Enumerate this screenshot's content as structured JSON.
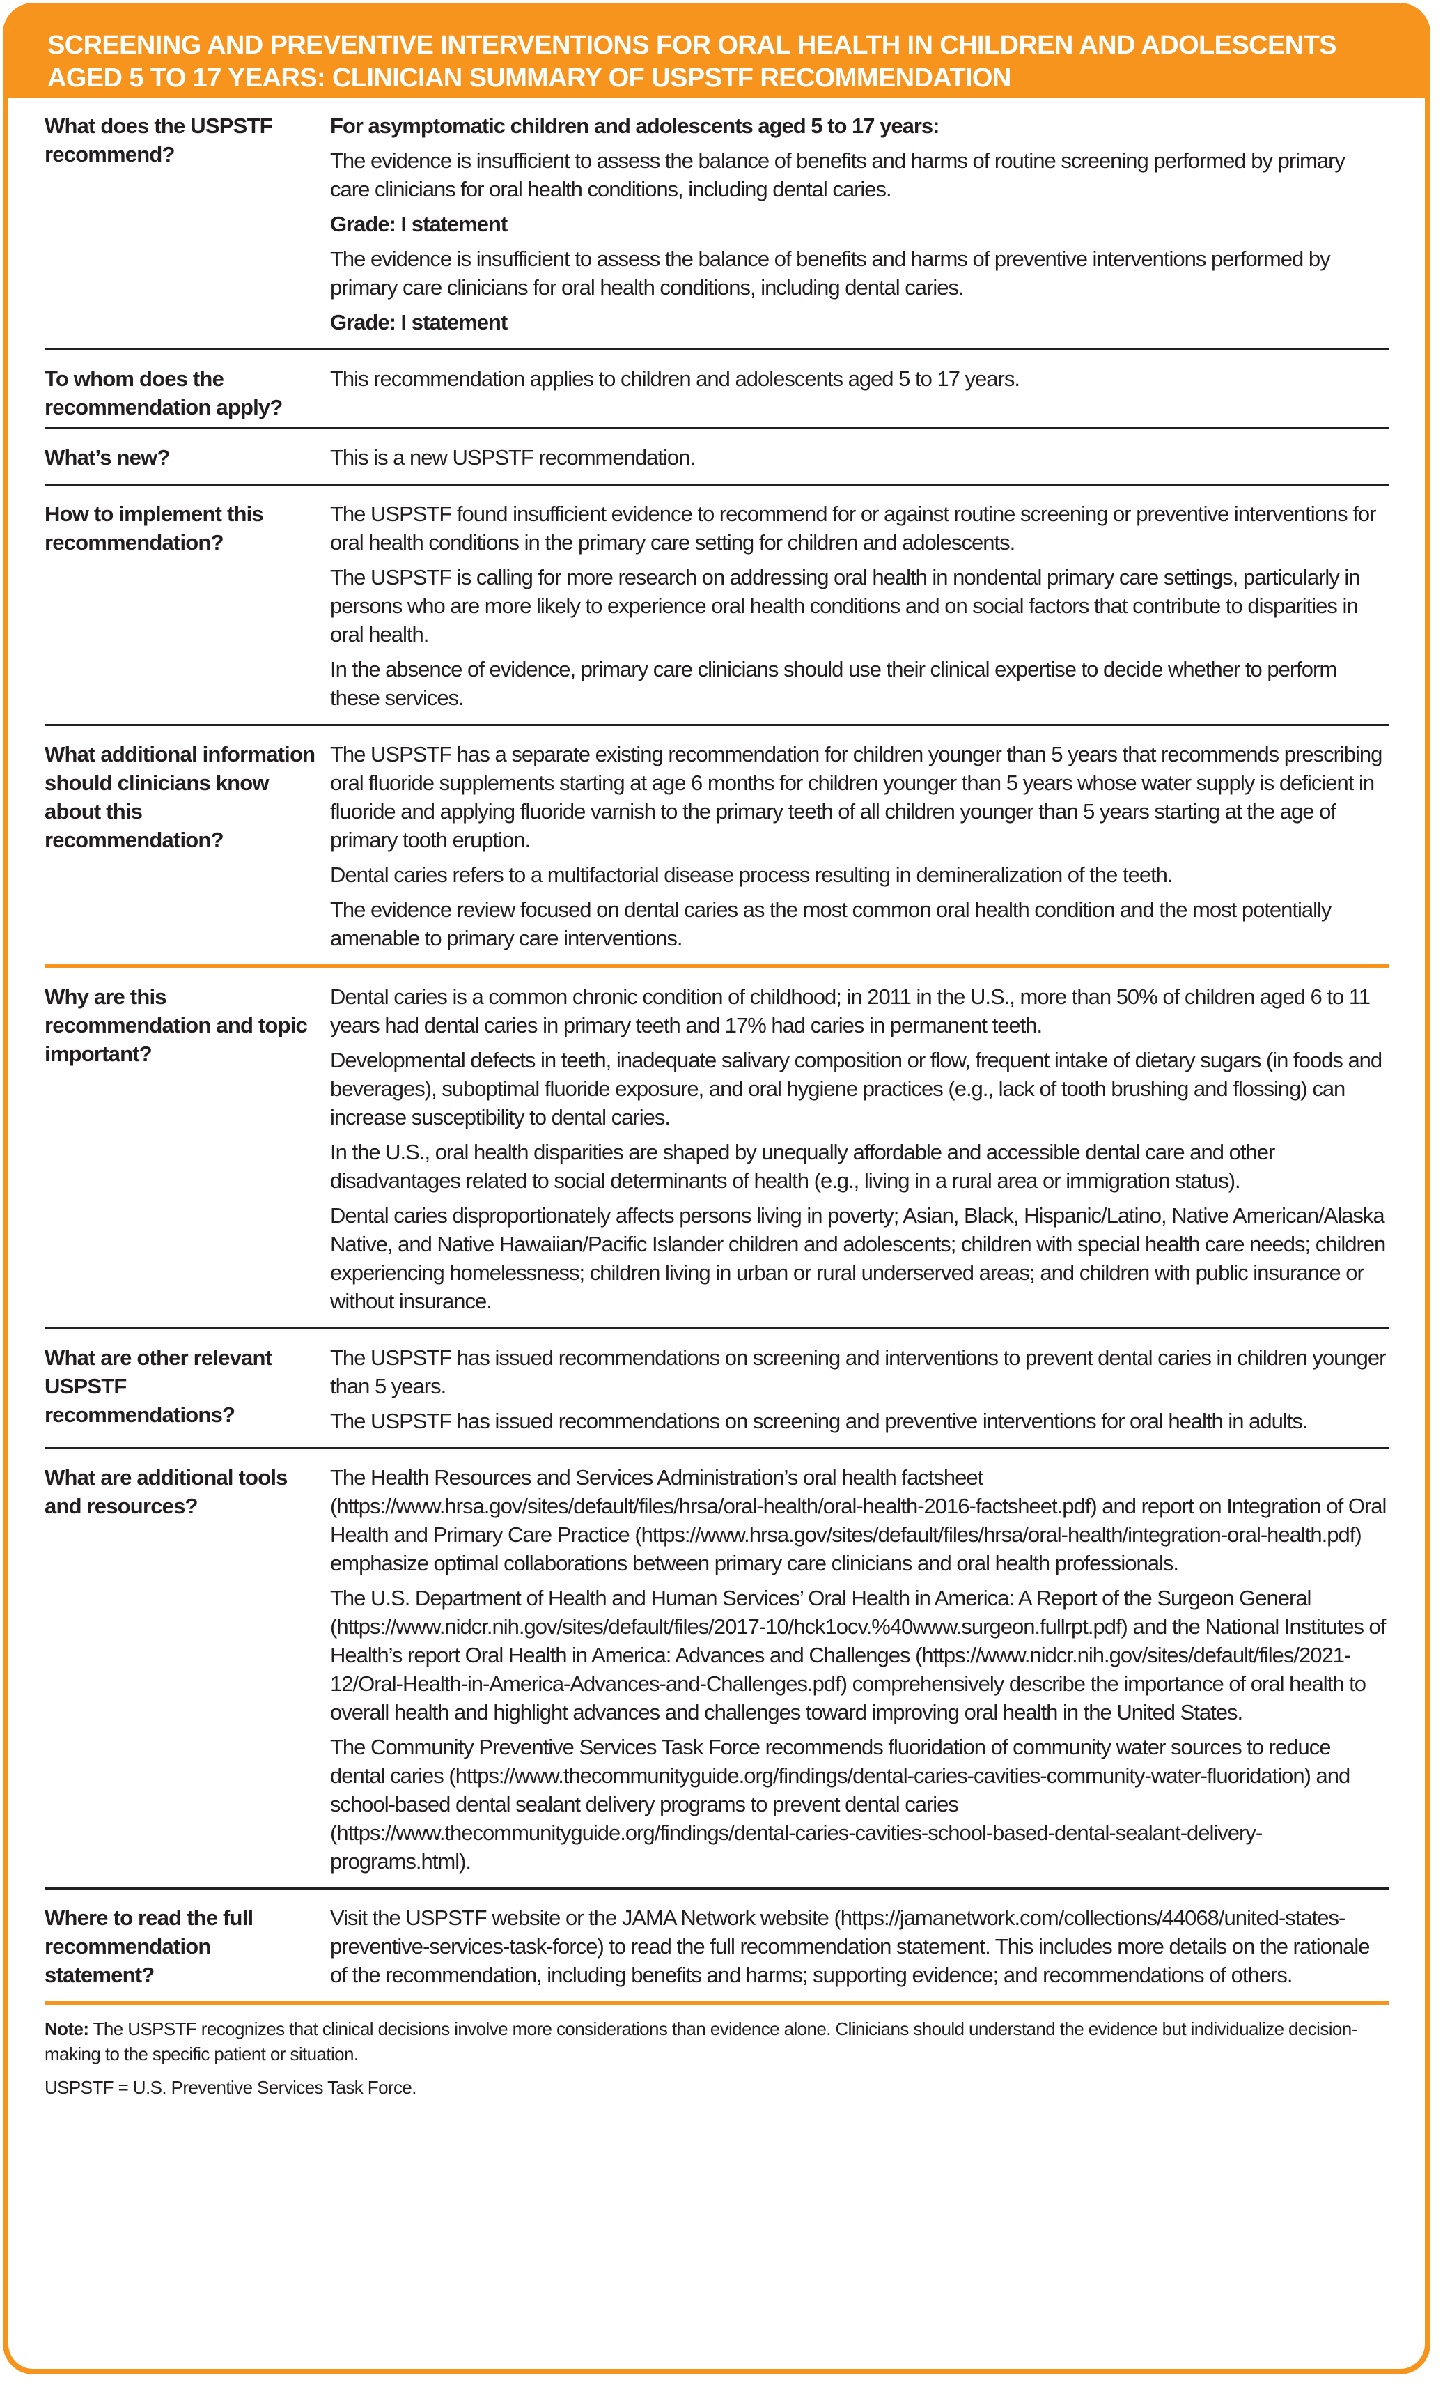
{
  "title": "Screening and Preventive Interventions for Oral Health in Children and Adolescents Aged 5 to 17 Years: Clinician Summary of USPSTF Recommendation",
  "accent_color": "#f7941d",
  "rows": [
    {
      "question": "What does the USPSTF recommend?",
      "paragraphs": [
        {
          "text": "For asymptomatic children and adolescents aged 5 to 17 years:",
          "bold": true
        },
        {
          "text": "The evidence is insufficient to assess the balance of benefits and harms of routine screening performed by primary care clinicians for oral health conditions, including dental caries.",
          "bold": false
        },
        {
          "text": "Grade: I statement",
          "bold": true
        },
        {
          "text": "The evidence is insufficient to assess the balance of benefits and harms of preventive interventions performed by primary care clinicians for oral health conditions, including dental caries.",
          "bold": false
        },
        {
          "text": "Grade: I statement",
          "bold": true
        }
      ]
    },
    {
      "question": "To whom does the recommendation apply?",
      "paragraphs": [
        {
          "text": "This recommendation applies to children and adolescents aged 5 to 17 years.",
          "bold": false
        }
      ]
    },
    {
      "question": "What’s new?",
      "paragraphs": [
        {
          "text": "This is a new USPSTF recommendation.",
          "bold": false
        }
      ]
    },
    {
      "question": "How to implement this recommendation?",
      "paragraphs": [
        {
          "text": "The USPSTF found insufficient evidence to recommend for or against routine screening or preventive interventions for oral health conditions in the primary care setting for children and adolescents.",
          "bold": false
        },
        {
          "text": "The USPSTF is calling for more research on addressing oral health in nondental primary care settings, particularly in persons who are more likely to experience oral health conditions and on social factors that contribute to disparities in oral health.",
          "bold": false
        },
        {
          "text": "In the absence of evidence, primary care clinicians should use their clinical expertise to decide whether to perform these services.",
          "bold": false
        }
      ]
    },
    {
      "question": "What additional information should clinicians know about this recommendation?",
      "paragraphs": [
        {
          "text": "The USPSTF has a separate existing recommendation for children younger than 5 years that recommends prescribing oral fluoride supplements starting at age 6 months for children younger than 5 years whose water supply is deficient in fluoride and applying fluoride varnish to the primary teeth of all children younger than 5 years starting at the age of primary tooth eruption.",
          "bold": false
        },
        {
          "text": "Dental caries refers to a multifactorial disease process resulting in demineralization of the teeth.",
          "bold": false
        },
        {
          "text": "The evidence review focused on dental caries as the most common oral health condition and the most potentially amenable to primary care interventions.",
          "bold": false
        }
      ]
    },
    {
      "question": "Why are this recommendation and topic important?",
      "paragraphs": [
        {
          "text": "Dental caries is a common chronic condition of childhood; in 2011 in the U.S., more than 50% of children aged 6 to 11 years had dental caries in primary teeth and 17% had caries in permanent teeth.",
          "bold": false
        },
        {
          "text": "Developmental defects in teeth, inadequate salivary composition or flow, frequent intake of dietary sugars (in foods and beverages), suboptimal fluoride exposure, and oral hygiene practices (e.g., lack of tooth brushing and flossing) can increase susceptibility to dental caries.",
          "bold": false
        },
        {
          "text": "In the U.S., oral health disparities are shaped by unequally affordable and accessible dental care and other disadvantages related to social determinants of health (e.g., living in a rural area or immigration status).",
          "bold": false
        },
        {
          "text": "Dental caries disproportionately affects persons living in poverty; Asian, Black, Hispanic/Latino, Native American/Alaska Native, and Native Hawaiian/Pacific Islander children and adolescents; children with special health care needs; children experiencing homelessness; children living in urban or rural underserved areas; and children with public insurance or without insurance.",
          "bold": false
        }
      ]
    },
    {
      "question": "What are other relevant USPSTF recommendations?",
      "paragraphs": [
        {
          "text": "The USPSTF has issued recommendations on screening and interventions to prevent dental caries in children younger than 5 years.",
          "bold": false
        },
        {
          "text": "The USPSTF has issued recommendations on screening and preventive interventions for oral health in adults.",
          "bold": false
        }
      ]
    },
    {
      "question": "What are additional tools and resources?",
      "paragraphs": [
        {
          "text": "The Health Resources and Services Administration’s oral health factsheet (https://www.hrsa.gov/sites/default/files/hrsa/oral-health/oral-health-2016-factsheet.pdf) and report on Integration of Oral Health and Primary Care Practice (https://www.hrsa.gov/sites/default/files/hrsa/oral-health/integration-oral-health.pdf) emphasize optimal collaborations between primary care clinicians and oral health professionals.",
          "bold": false
        },
        {
          "text": "The U.S. Department of Health and Human Services’ Oral Health in America: A Report of the Surgeon General (https://www.nidcr.nih.gov/sites/default/files/2017-10/hck1ocv.%40www.surgeon.fullrpt.pdf) and the National Institutes of Health’s report Oral Health in America: Advances and Challenges (https://www.nidcr.nih.gov/sites/default/files/2021-12/Oral-Health-in-America-Advances-and-Challenges.pdf) comprehensively describe the importance of oral health to overall health and highlight advances and challenges toward improving oral health in the United States.",
          "bold": false
        },
        {
          "text": "The Community Preventive Services Task Force recommends fluoridation of community water sources to reduce dental caries (https://www.thecommunityguide.org/findings/dental-caries-cavities-community-water-fluoridation) and school-based dental sealant delivery programs to prevent dental caries (https://www.thecommunityguide.org/findings/dental-caries-cavities-school-based-dental-sealant-delivery-programs.html).",
          "bold": false
        }
      ]
    },
    {
      "question": "Where to read the full recommendation statement?",
      "paragraphs": [
        {
          "text": "Visit the USPSTF website or the JAMA Network website (https://jamanetwork.com/collections/44068/united-states-preventive-services-task-force) to read the full recommendation statement. This includes more details on the rationale of the recommendation, including benefits and harms; supporting evidence; and recommendations of others.",
          "bold": false
        }
      ]
    }
  ],
  "note": {
    "label": "Note:",
    "text": " The USPSTF recognizes that clinical decisions involve more considerations than evidence alone. Clinicians should understand the evidence but individualize decision-making to the specific patient or situation.",
    "abbreviation": "USPSTF = U.S. Preventive Services Task Force."
  }
}
